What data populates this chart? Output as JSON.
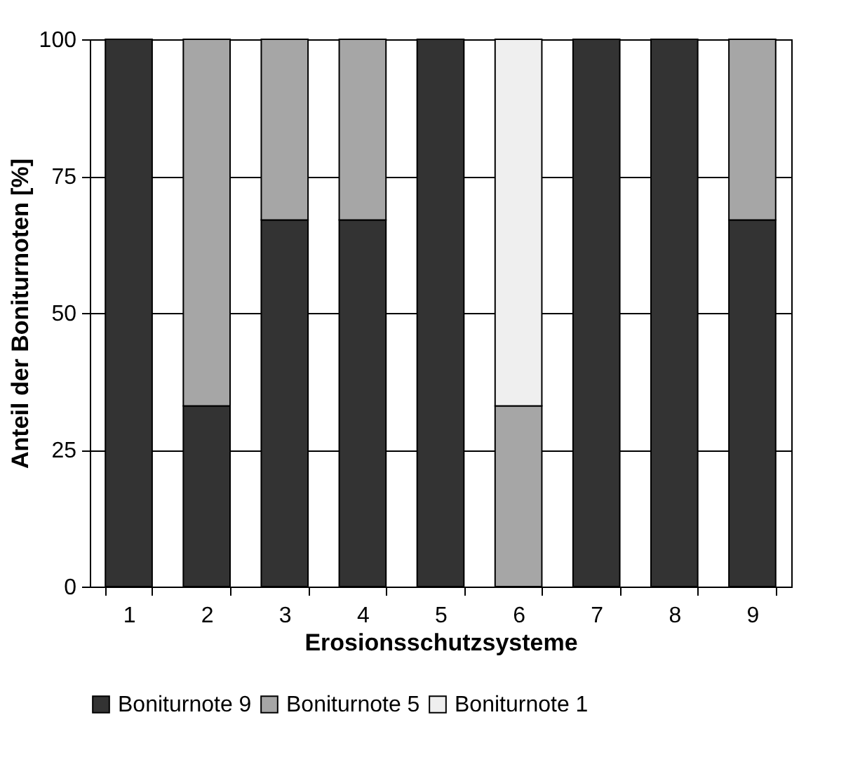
{
  "chart_data": {
    "type": "bar",
    "stacked": true,
    "xlabel": "Erosionsschutzsysteme",
    "ylabel": "Anteil der Boniturnoten [%]",
    "categories": [
      "1",
      "2",
      "3",
      "4",
      "5",
      "6",
      "7",
      "8",
      "9"
    ],
    "series": [
      {
        "name": "Boniturnote 9",
        "color": "#333333",
        "values": [
          100,
          33,
          67,
          67,
          100,
          null,
          100,
          100,
          67
        ]
      },
      {
        "name": "Boniturnote 5",
        "color": "#a6a6a6",
        "values": [
          null,
          67,
          33,
          33,
          null,
          33,
          null,
          null,
          33
        ]
      },
      {
        "name": "Boniturnote 1",
        "color": "#efefef",
        "values": [
          null,
          null,
          null,
          null,
          null,
          67,
          null,
          null,
          null
        ]
      }
    ],
    "ylim": [
      0,
      100
    ],
    "yticks": [
      0,
      25,
      50,
      75,
      100
    ],
    "grid": "y",
    "legend": "bottom"
  }
}
